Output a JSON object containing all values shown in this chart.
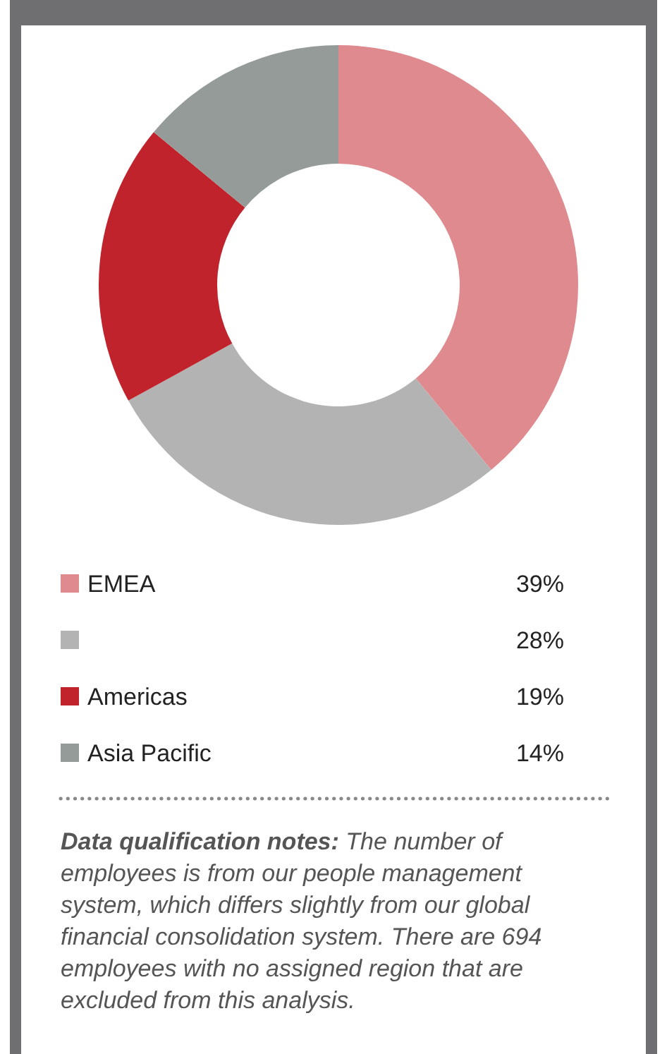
{
  "chart_data": {
    "type": "donut",
    "categories": [
      "EMEA",
      null,
      "Americas",
      "Asia Pacific"
    ],
    "values": [
      39,
      28,
      19,
      14
    ],
    "value_labels": [
      "39%",
      "28%",
      "19%",
      "14%"
    ],
    "colors": [
      "#de8a8e",
      "#b3b3b3",
      "#c0232b",
      "#959b98"
    ],
    "legend": "bottom",
    "annotations": [
      "Data qualification notes:",
      "The number of employees is from our people management system, which differs slightly from our global financial consolidation system. There are 694 employees with no assigned region that are excluded from this analysis."
    ]
  }
}
